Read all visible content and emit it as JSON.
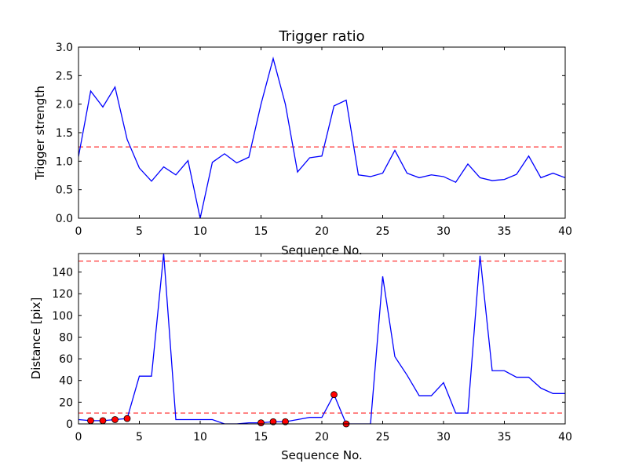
{
  "colors": {
    "series": "#0000ff",
    "threshold": "#ff0000",
    "marker": "#ff0000",
    "axis": "#000000",
    "background": "#ffffff"
  },
  "chart_data": [
    {
      "type": "line",
      "title": "Trigger ratio",
      "xlabel": "Sequence No.",
      "ylabel": "Trigger strength",
      "xlim": [
        0,
        40
      ],
      "ylim": [
        0,
        3.0
      ],
      "xticks": [
        0,
        5,
        10,
        15,
        20,
        25,
        30,
        35,
        40
      ],
      "xtick_labels": [
        "0",
        "5",
        "10",
        "15",
        "20",
        "25",
        "30",
        "35",
        "40"
      ],
      "yticks": [
        0,
        0.5,
        1.0,
        1.5,
        2.0,
        2.5,
        3.0
      ],
      "ytick_labels": [
        "0.0",
        "0.5",
        "1.0",
        "1.5",
        "2.0",
        "2.5",
        "3.0"
      ],
      "grid": false,
      "series": [
        {
          "x": [
            0,
            1,
            2,
            3,
            4,
            5,
            6,
            7,
            8,
            9,
            10,
            11,
            12,
            13,
            14,
            15,
            16,
            17,
            18,
            19,
            20,
            21,
            22,
            23,
            24,
            25,
            26,
            27,
            28,
            29,
            30,
            31,
            32,
            33,
            34,
            35,
            36,
            37,
            38,
            39,
            40
          ],
          "values": [
            1.08,
            2.23,
            1.95,
            2.3,
            1.38,
            0.88,
            0.65,
            0.9,
            0.76,
            1.01,
            0.0,
            0.98,
            1.13,
            0.97,
            1.07,
            2.0,
            2.8,
            2.0,
            0.81,
            1.06,
            1.09,
            1.97,
            2.07,
            0.76,
            0.73,
            0.79,
            1.19,
            0.79,
            0.71,
            0.76,
            0.73,
            0.63,
            0.95,
            0.71,
            0.66,
            0.68,
            0.77,
            1.09,
            0.71,
            0.79,
            0.71
          ]
        }
      ],
      "thresholds": [
        1.25
      ]
    },
    {
      "type": "line",
      "title": "",
      "xlabel": "Sequence No.",
      "ylabel": "Distance [pix]",
      "xlim": [
        0,
        40
      ],
      "ylim": [
        0,
        157
      ],
      "xticks": [
        0,
        5,
        10,
        15,
        20,
        25,
        30,
        35,
        40
      ],
      "xtick_labels": [
        "0",
        "5",
        "10",
        "15",
        "20",
        "25",
        "30",
        "35",
        "40"
      ],
      "yticks": [
        0,
        20,
        40,
        60,
        80,
        100,
        120,
        140
      ],
      "ytick_labels": [
        "0",
        "20",
        "40",
        "60",
        "80",
        "100",
        "120",
        "140"
      ],
      "grid": false,
      "series": [
        {
          "x": [
            0,
            1,
            2,
            3,
            4,
            5,
            6,
            7,
            8,
            9,
            10,
            11,
            12,
            13,
            14,
            15,
            16,
            17,
            18,
            19,
            20,
            21,
            22,
            23,
            24,
            25,
            26,
            27,
            28,
            29,
            30,
            31,
            32,
            33,
            34,
            35,
            36,
            37,
            38,
            39,
            40
          ],
          "values": [
            4,
            3,
            3,
            4,
            5,
            44,
            44,
            157,
            4,
            4,
            4,
            4,
            0,
            0,
            1,
            1,
            2,
            2,
            4,
            6,
            6,
            27,
            0,
            0,
            0,
            136,
            62,
            45,
            26,
            26,
            38,
            10,
            10,
            155,
            49,
            49,
            43,
            43,
            33,
            28,
            28
          ]
        }
      ],
      "markers": {
        "x": [
          1,
          2,
          3,
          4,
          15,
          16,
          17,
          21,
          22
        ],
        "values": [
          3,
          3,
          4,
          5,
          1,
          2,
          2,
          27,
          0
        ]
      },
      "thresholds": [
        10,
        150
      ]
    }
  ]
}
